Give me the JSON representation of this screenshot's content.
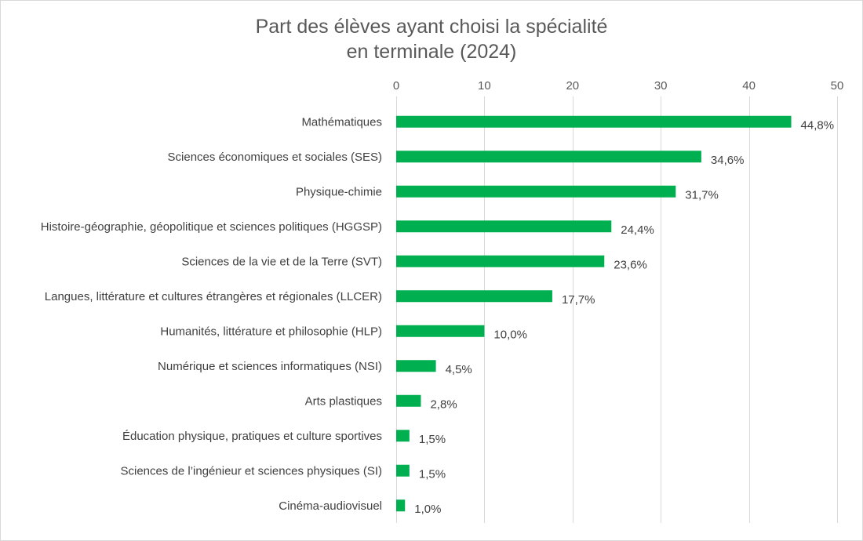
{
  "chart_data": {
    "type": "bar",
    "orientation": "horizontal",
    "title": [
      "Part des élèves ayant choisi la spécialité",
      "en terminale (2024)"
    ],
    "categories": [
      "Mathématiques",
      "Sciences économiques et sociales (SES)",
      "Physique-chimie",
      "Histoire-géographie, géopolitique et sciences politiques (HGGSP)",
      "Sciences de la vie et de la Terre (SVT)",
      "Langues, littérature et cultures étrangères et régionales (LLCER)",
      "Humanités, littérature et philosophie (HLP)",
      "Numérique et sciences informatiques (NSI)",
      "Arts plastiques",
      "Éducation physique, pratiques et culture sportives",
      "Sciences de l’ingénieur et sciences physiques (SI)",
      "Cinéma-audiovisuel"
    ],
    "values": [
      44.8,
      34.6,
      31.7,
      24.4,
      23.6,
      17.7,
      10.0,
      4.5,
      2.8,
      1.5,
      1.5,
      1.0
    ],
    "value_labels": [
      "44,8%",
      "34,6%",
      "31,7%",
      "24,4%",
      "23,6%",
      "17,7%",
      "10,0%",
      "4,5%",
      "2,8%",
      "1,5%",
      "1,5%",
      "1,0%"
    ],
    "xlim": [
      0,
      50
    ],
    "xticks": [
      0,
      10,
      20,
      30,
      40,
      50
    ],
    "x_axis_position": "top",
    "grid": true,
    "legend": "none",
    "bar_color": "#00b050"
  }
}
